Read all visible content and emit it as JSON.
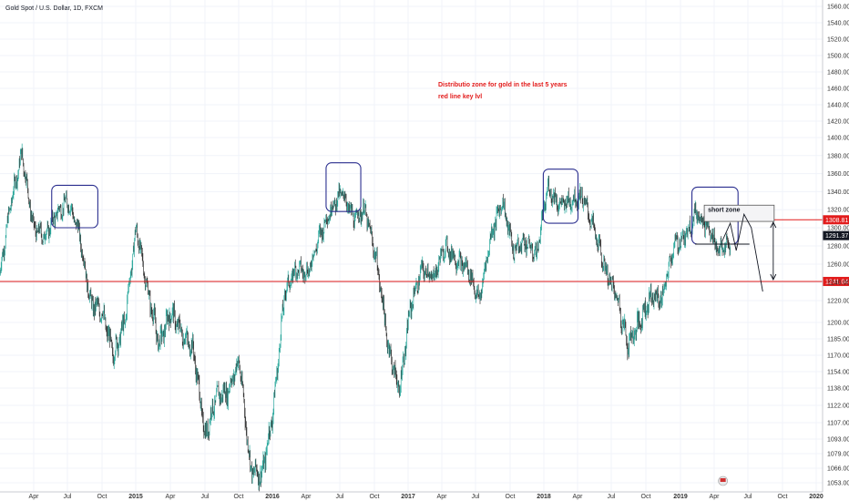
{
  "chart_data": {
    "type": "line",
    "title": "Gold Spot / U.S. Dollar, 1D, FXCM",
    "xlabel": "",
    "ylabel": "",
    "x_ticks": [
      "Apr",
      "Jul",
      "Oct",
      "2015",
      "Apr",
      "Jul",
      "Oct",
      "2016",
      "Apr",
      "Jul",
      "Oct",
      "2017",
      "Apr",
      "Jul",
      "Oct",
      "2018",
      "Apr",
      "Jul",
      "Oct",
      "2019",
      "Apr",
      "Jul",
      "Oct",
      "2020"
    ],
    "y_ticks": [
      1560,
      1540,
      1520,
      1500,
      1480,
      1460,
      1440,
      1420,
      1400,
      1380,
      1360,
      1340,
      1320,
      1300,
      1280,
      1260,
      1240,
      1220,
      1200,
      1185,
      1170,
      1154,
      1138,
      1122,
      1107,
      1093,
      1079,
      1066,
      1053
    ],
    "ylim": [
      1050,
      1565
    ],
    "date_range": [
      "2014-01",
      "2020-01"
    ],
    "series": [
      {
        "values_x": [
          "2014-01",
          "2014-02",
          "2014-03",
          "2014-04",
          "2014-05",
          "2014-06",
          "2014-07",
          "2014-08",
          "2014-09",
          "2014-10",
          "2014-11",
          "2014-12",
          "2015-01",
          "2015-02",
          "2015-03",
          "2015-04",
          "2015-05",
          "2015-06",
          "2015-07",
          "2015-08",
          "2015-09",
          "2015-10",
          "2015-11",
          "2015-12",
          "2016-01",
          "2016-02",
          "2016-03",
          "2016-04",
          "2016-05",
          "2016-06",
          "2016-07",
          "2016-08",
          "2016-09",
          "2016-10",
          "2016-11",
          "2016-12",
          "2017-01",
          "2017-02",
          "2017-03",
          "2017-04",
          "2017-05",
          "2017-06",
          "2017-07",
          "2017-08",
          "2017-09",
          "2017-10",
          "2017-11",
          "2017-12",
          "2018-01",
          "2018-02",
          "2018-03",
          "2018-04",
          "2018-05",
          "2018-06",
          "2018-07",
          "2018-08",
          "2018-09",
          "2018-10",
          "2018-11",
          "2018-12",
          "2019-01",
          "2019-02",
          "2019-03",
          "2019-04",
          "2019-05"
        ],
        "values": [
          1244,
          1326,
          1383,
          1300,
          1290,
          1315,
          1330,
          1295,
          1218,
          1210,
          1170,
          1200,
          1300,
          1230,
          1180,
          1210,
          1190,
          1175,
          1095,
          1130,
          1135,
          1165,
          1065,
          1060,
          1120,
          1230,
          1255,
          1250,
          1290,
          1320,
          1340,
          1310,
          1320,
          1265,
          1180,
          1135,
          1215,
          1255,
          1245,
          1280,
          1265,
          1255,
          1220,
          1290,
          1330,
          1275,
          1285,
          1270,
          1345,
          1325,
          1330,
          1335,
          1300,
          1255,
          1225,
          1180,
          1200,
          1225,
          1222,
          1280,
          1290,
          1318,
          1300,
          1275,
          1282
        ]
      }
    ],
    "horizontal_levels": [
      {
        "label": "1308.81",
        "value": 1308.81,
        "color": "#e21b1b"
      },
      {
        "label": "1241.04",
        "value": 1241.04,
        "color": "#e21b1b"
      }
    ],
    "last_price_label": "1291.37",
    "annotations": [
      "Distributio zone for gold in the last 5 years",
      "red line key lvl",
      "short zone"
    ],
    "grid": true,
    "legend": "none",
    "colors": {
      "up": "#26a69a",
      "down": "#333333",
      "level": "#e21b1b",
      "circle": "#2b2f8f",
      "bg": "#ffffff"
    }
  }
}
